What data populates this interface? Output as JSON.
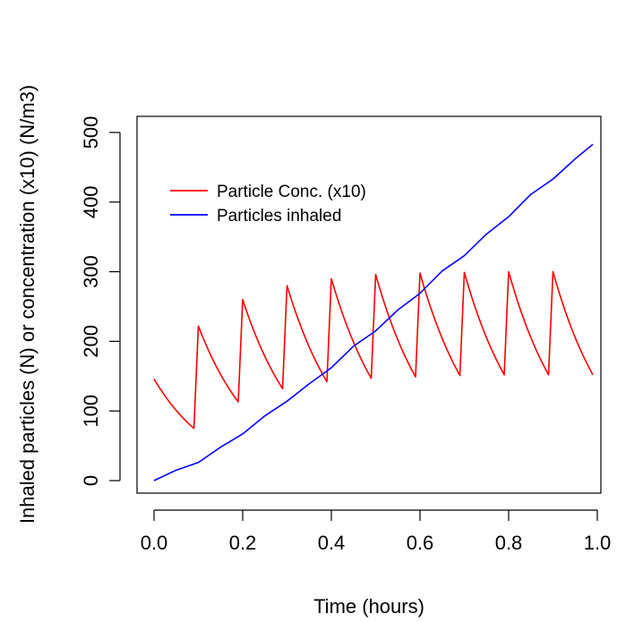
{
  "chart_data": {
    "type": "line",
    "title": "",
    "xlabel": "Time (hours)",
    "ylabel": "Inhaled particles (N) or concentration (x10) (N/m3)",
    "xlim": [
      0.0,
      1.0
    ],
    "ylim": [
      0,
      500
    ],
    "x_ticks": [
      0.0,
      0.2,
      0.4,
      0.6,
      0.8,
      1.0
    ],
    "x_tick_labels": [
      "0.0",
      "0.2",
      "0.4",
      "0.6",
      "0.8",
      "1.0"
    ],
    "y_ticks": [
      0,
      100,
      200,
      300,
      400,
      500
    ],
    "y_tick_labels": [
      "0",
      "100",
      "200",
      "300",
      "400",
      "500"
    ],
    "grid": false,
    "legend_position": "top-left",
    "series": [
      {
        "name": "Particle Conc. (x10)",
        "color": "#ff0000",
        "segments": [
          {
            "t0": 0.0,
            "t1": 0.09,
            "start": 146,
            "end": 75
          },
          {
            "t0": 0.1,
            "t1": 0.19,
            "start": 222,
            "end": 113
          },
          {
            "t0": 0.2,
            "t1": 0.29,
            "start": 260,
            "end": 132
          },
          {
            "t0": 0.3,
            "t1": 0.39,
            "start": 280,
            "end": 142
          },
          {
            "t0": 0.4,
            "t1": 0.49,
            "start": 290,
            "end": 147
          },
          {
            "t0": 0.5,
            "t1": 0.59,
            "start": 296,
            "end": 149
          },
          {
            "t0": 0.6,
            "t1": 0.69,
            "start": 298,
            "end": 151
          },
          {
            "t0": 0.7,
            "t1": 0.79,
            "start": 299,
            "end": 152
          },
          {
            "t0": 0.8,
            "t1": 0.89,
            "start": 300,
            "end": 152
          },
          {
            "t0": 0.9,
            "t1": 0.99,
            "start": 300,
            "end": 152
          }
        ]
      },
      {
        "name": "Particles inhaled",
        "color": "#0000ff",
        "x": [
          0.0,
          0.05,
          0.1,
          0.15,
          0.2,
          0.25,
          0.3,
          0.35,
          0.4,
          0.45,
          0.5,
          0.55,
          0.6,
          0.65,
          0.7,
          0.75,
          0.8,
          0.85,
          0.9,
          0.95,
          0.99
        ],
        "values": [
          0,
          15,
          26,
          48,
          67,
          93,
          114,
          139,
          162,
          193,
          215,
          245,
          269,
          301,
          323,
          354,
          379,
          411,
          433,
          462,
          483
        ]
      }
    ]
  }
}
